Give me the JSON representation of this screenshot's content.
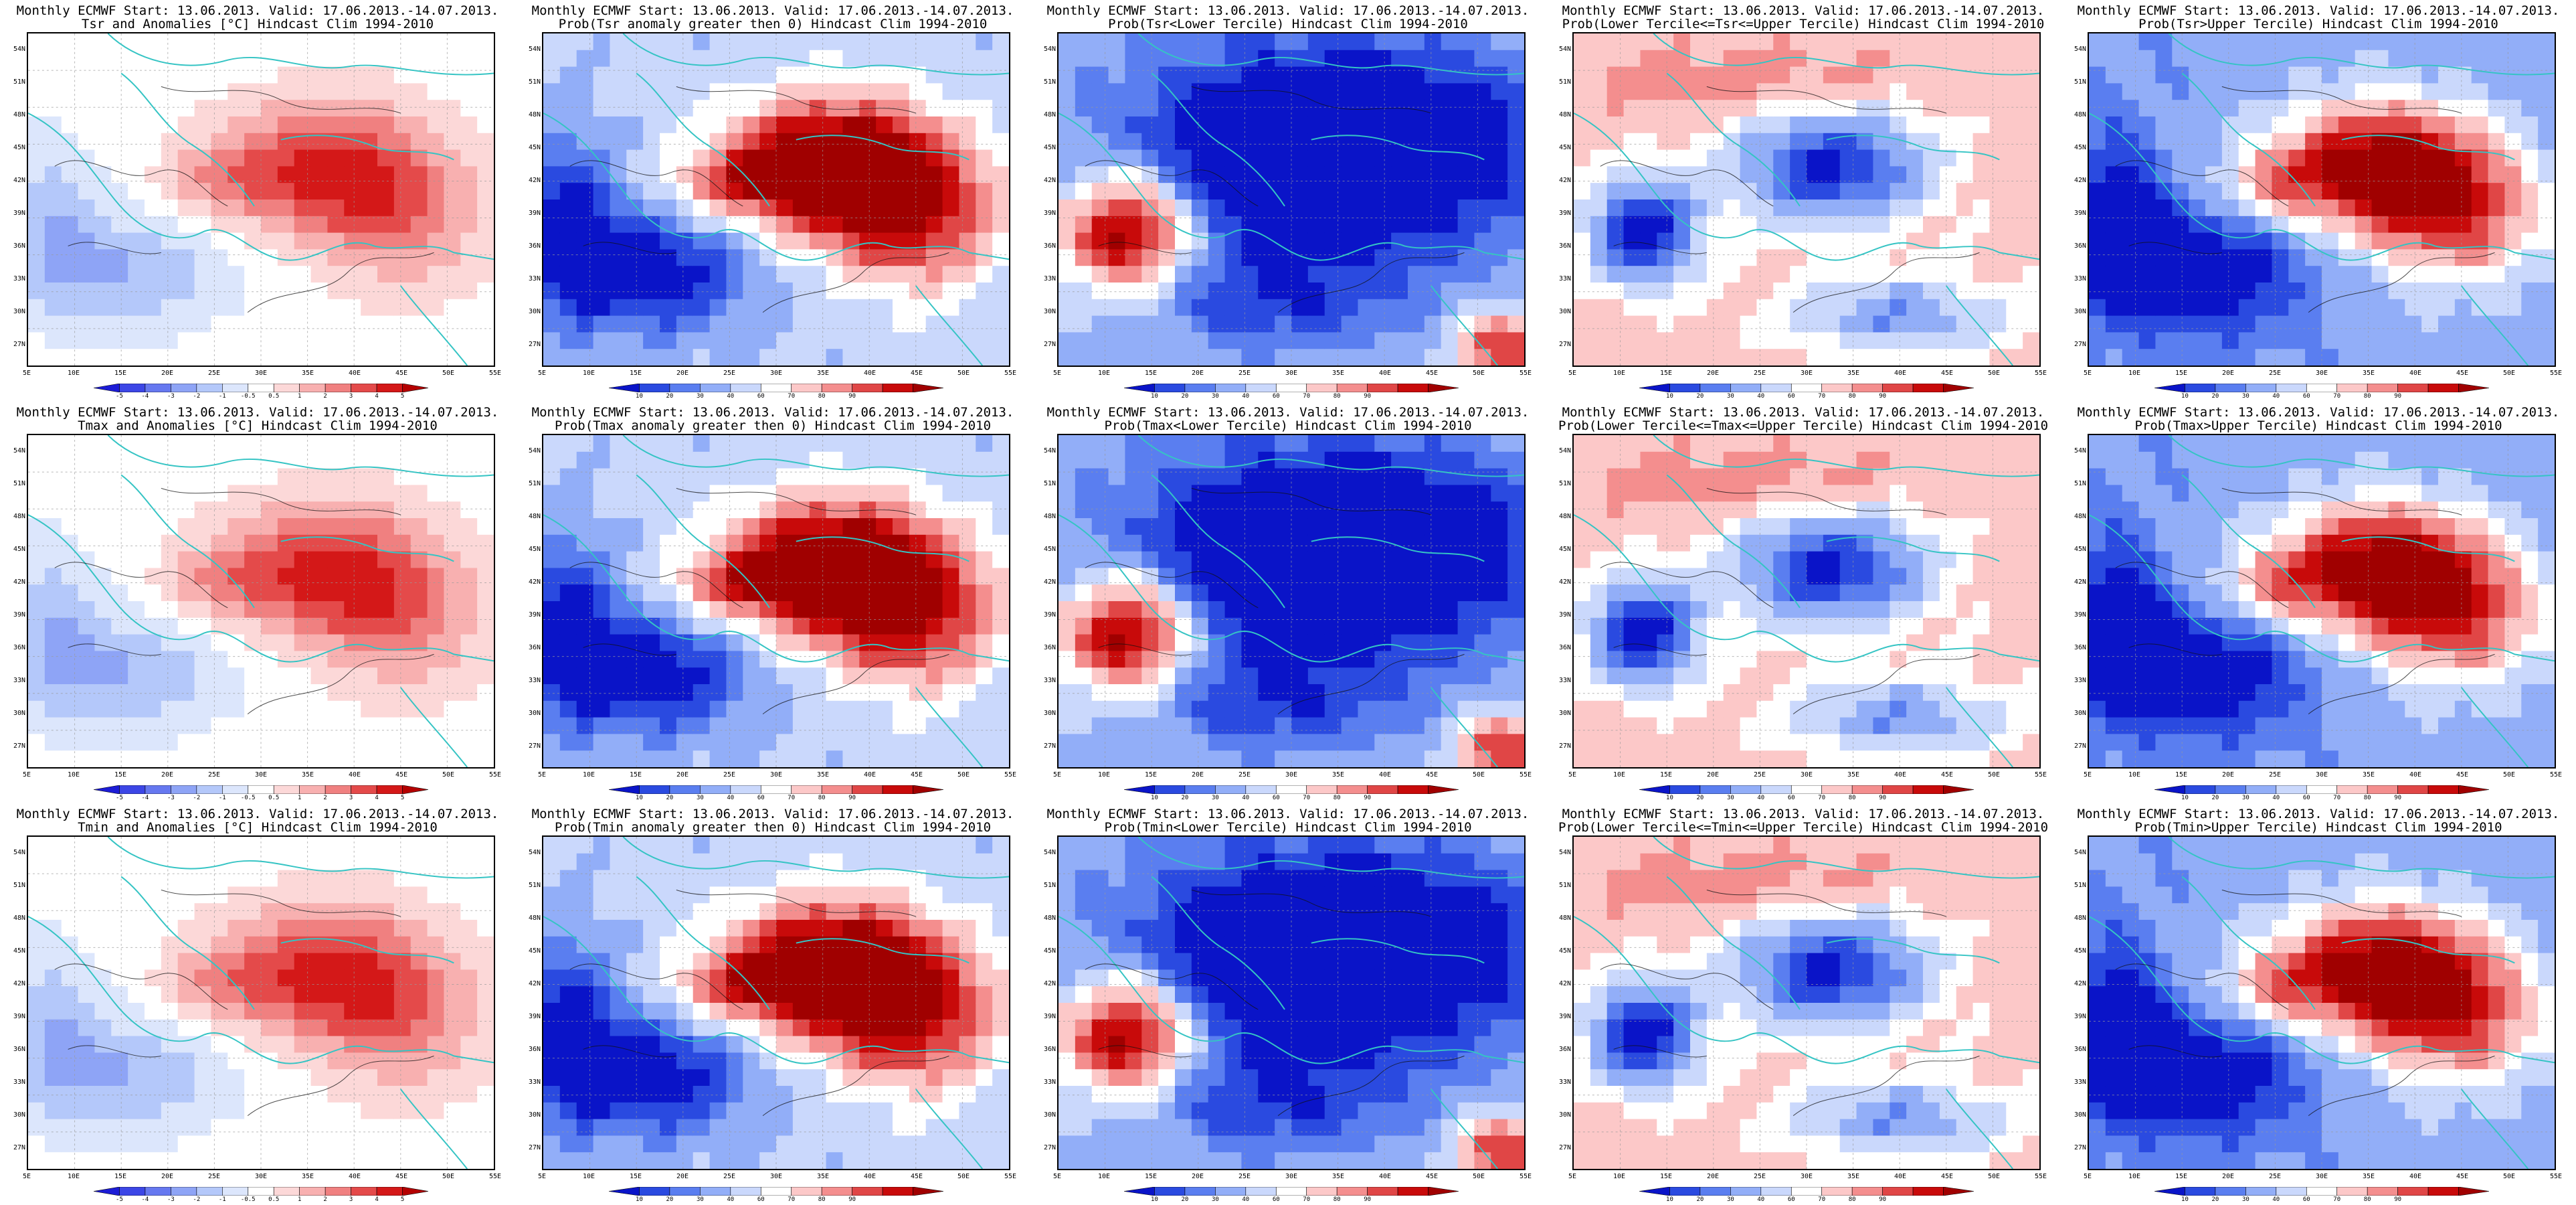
{
  "panels": [
    {
      "line1": "Monthly ECMWF Start: 13.06.2013. Valid: 17.06.2013.-14.07.2013.",
      "line2": "Tsr and Anomalies [°C] Hindcast Clim 1994-2010",
      "kind": "anom"
    },
    {
      "line1": "Monthly ECMWF Start: 13.06.2013. Valid: 17.06.2013.-14.07.2013.",
      "line2": "Prob(Tsr anomaly greater then 0) Hindcast Clim 1994-2010",
      "kind": "pos"
    },
    {
      "line1": "Monthly ECMWF Start: 13.06.2013. Valid: 17.06.2013.-14.07.2013.",
      "line2": "Prob(Tsr<Lower Tercile) Hindcast Clim 1994-2010",
      "kind": "low"
    },
    {
      "line1": "Monthly ECMWF Start: 13.06.2013. Valid: 17.06.2013.-14.07.2013.",
      "line2": "Prob(Lower Tercile<=Tsr<=Upper Tercile) Hindcast Clim 1994-2010",
      "kind": "mid"
    },
    {
      "line1": "Monthly ECMWF Start: 13.06.2013. Valid: 17.06.2013.-14.07.2013.",
      "line2": "Prob(Tsr>Upper Tercile) Hindcast Clim 1994-2010",
      "kind": "up"
    },
    {
      "line1": "Monthly ECMWF Start: 13.06.2013. Valid: 17.06.2013.-14.07.2013.",
      "line2": "Tmax and Anomalies [°C] Hindcast Clim 1994-2010",
      "kind": "anom"
    },
    {
      "line1": "Monthly ECMWF Start: 13.06.2013. Valid: 17.06.2013.-14.07.2013.",
      "line2": "Prob(Tmax anomaly greater then 0) Hindcast Clim 1994-2010",
      "kind": "pos"
    },
    {
      "line1": "Monthly ECMWF Start: 13.06.2013. Valid: 17.06.2013.-14.07.2013.",
      "line2": "Prob(Tmax<Lower Tercile) Hindcast Clim 1994-2010",
      "kind": "low"
    },
    {
      "line1": "Monthly ECMWF Start: 13.06.2013. Valid: 17.06.2013.-14.07.2013.",
      "line2": "Prob(Lower Tercile<=Tmax<=Upper Tercile) Hindcast Clim 1994-2010",
      "kind": "mid"
    },
    {
      "line1": "Monthly ECMWF Start: 13.06.2013. Valid: 17.06.2013.-14.07.2013.",
      "line2": "Prob(Tmax>Upper Tercile) Hindcast Clim 1994-2010",
      "kind": "up"
    },
    {
      "line1": "Monthly ECMWF Start: 13.06.2013. Valid: 17.06.2013.-14.07.2013.",
      "line2": "Tmin and Anomalies [°C] Hindcast Clim 1994-2010",
      "kind": "anom"
    },
    {
      "line1": "Monthly ECMWF Start: 13.06.2013. Valid: 17.06.2013.-14.07.2013.",
      "line2": "Prob(Tmin anomaly greater then 0) Hindcast Clim 1994-2010",
      "kind": "pos"
    },
    {
      "line1": "Monthly ECMWF Start: 13.06.2013. Valid: 17.06.2013.-14.07.2013.",
      "line2": "Prob(Tmin<Lower Tercile) Hindcast Clim 1994-2010",
      "kind": "low"
    },
    {
      "line1": "Monthly ECMWF Start: 13.06.2013. Valid: 17.06.2013.-14.07.2013.",
      "line2": "Prob(Lower Tercile<=Tmin<=Upper Tercile) Hindcast Clim 1994-2010",
      "kind": "mid"
    },
    {
      "line1": "Monthly ECMWF Start: 13.06.2013. Valid: 17.06.2013.-14.07.2013.",
      "line2": "Prob(Tmin>Upper Tercile) Hindcast Clim 1994-2010",
      "kind": "up"
    }
  ],
  "lat_labels": [
    "54N",
    "51N",
    "48N",
    "45N",
    "42N",
    "39N",
    "36N",
    "33N",
    "30N",
    "27N"
  ],
  "lon_labels": [
    "5E",
    "10E",
    "15E",
    "20E",
    "25E",
    "30E",
    "35E",
    "40E",
    "45E",
    "50E",
    "55E"
  ],
  "anom_scale": {
    "labels": [
      "-5",
      "-4",
      "-3",
      "-2",
      "-1",
      "-0.5",
      "0.5",
      "1",
      "2",
      "3",
      "4",
      "5"
    ],
    "colors": [
      "#1c1cd6",
      "#3c46e6",
      "#6678f0",
      "#8ea4f6",
      "#b4c8fa",
      "#dce6fc",
      "#ffffff",
      "#fcd8d8",
      "#f8b0b0",
      "#f08080",
      "#e44a4a",
      "#d41818",
      "#b40000"
    ]
  },
  "prob_scale": {
    "labels": [
      "10",
      "20",
      "30",
      "40",
      "60",
      "70",
      "80",
      "90"
    ],
    "colors": [
      "#0a14c8",
      "#2a4ae0",
      "#5a7ef0",
      "#92aef8",
      "#cad8fc",
      "#ffffff",
      "#fcc8c8",
      "#f48e8e",
      "#e04646",
      "#c80a0a",
      "#a00000"
    ]
  },
  "colors": {
    "coast": "#35c4c4",
    "contour": "#111111",
    "grid": "#9a9a9a"
  }
}
